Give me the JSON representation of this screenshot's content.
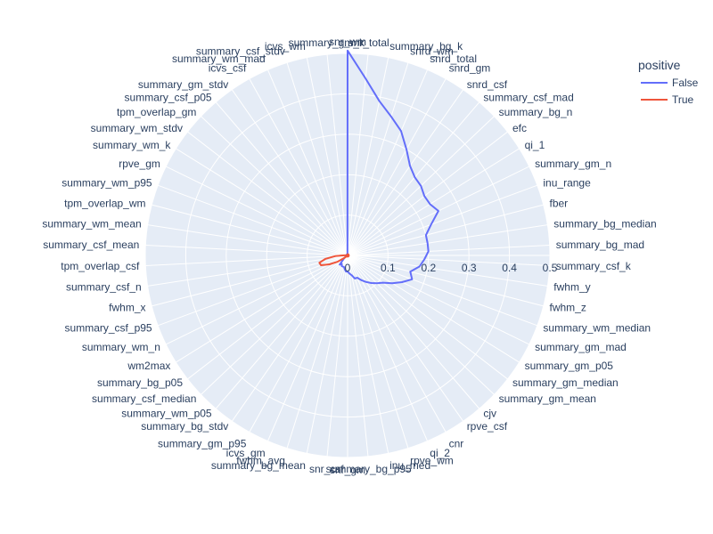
{
  "chart_data": {
    "type": "polar-line",
    "radial_range": [
      0,
      0.5
    ],
    "radial_ticks": [
      "0",
      "0.1",
      "0.2",
      "0.3",
      "0.4",
      "0.5"
    ],
    "angular_direction": "clockwise",
    "rotation_start": "top",
    "grid": true,
    "polar_background": "#e5ecf6",
    "legend": {
      "title": "positive",
      "placement": "top-right"
    },
    "categories": [
      "snr_wm",
      "snr_total",
      "summary_bg_k",
      "snrd_wm",
      "snrd_total",
      "snrd_gm",
      "snrd_csf",
      "summary_csf_mad",
      "summary_bg_n",
      "efc",
      "qi_1",
      "summary_gm_n",
      "inu_range",
      "fber",
      "summary_bg_median",
      "summary_bg_mad",
      "summary_csf_k",
      "fwhm_y",
      "fwhm_z",
      "summary_wm_median",
      "summary_gm_mad",
      "summary_gm_p05",
      "summary_gm_median",
      "summary_gm_mean",
      "cjv",
      "rpve_csf",
      "cnr",
      "qi_2",
      "rpve_wm",
      "inu_med",
      "summary_bg_p95",
      "snr_gm",
      "snr_csf",
      "summary_bg_mean",
      "fwhm_avg",
      "icvs_gm",
      "summary_gm_p95",
      "summary_bg_stdv",
      "summary_wm_p05",
      "summary_csf_median",
      "summary_bg_p05",
      "wm2max",
      "summary_wm_n",
      "summary_csf_p95",
      "fwhm_x",
      "summary_csf_n",
      "tpm_overlap_csf",
      "summary_csf_mean",
      "summary_wm_mean",
      "tpm_overlap_wm",
      "summary_wm_p95",
      "rpve_gm",
      "summary_wm_k",
      "summary_wm_stdv",
      "tpm_overlap_gm",
      "summary_csf_p05",
      "summary_gm_stdv",
      "icvs_csf",
      "summary_wm_mad",
      "summary_csf_stdv",
      "icvs_wm",
      "summary_gm_k"
    ],
    "series": [
      {
        "name": "False",
        "color": "#636efa",
        "values": [
          0.507,
          0.44,
          0.39,
          0.36,
          0.335,
          0.3,
          0.27,
          0.255,
          0.25,
          0.24,
          0.24,
          0.25,
          0.22,
          0.2,
          0.2,
          0.2,
          0.19,
          0.18,
          0.16,
          0.17,
          0.15,
          0.13,
          0.11,
          0.1,
          0.09,
          0.08,
          0.07,
          0.06,
          0.06,
          0.05,
          0.045,
          0.04,
          0.04,
          0.035,
          0.03,
          0.03,
          0.03,
          0.025,
          0.03,
          0.015,
          0.01,
          0.005,
          0.003,
          0.003,
          0.003,
          0.003,
          0.003,
          0.003,
          0.003,
          0.003,
          0.003,
          0.003,
          0.003,
          0.003,
          0.003,
          0.003,
          0.003,
          0.003,
          0.003,
          0.003,
          0.003,
          0.003
        ]
      },
      {
        "name": "True",
        "color": "#ef553b",
        "values": [
          0.003,
          0.003,
          0.003,
          0.003,
          0.003,
          0.003,
          0.003,
          0.003,
          0.003,
          0.003,
          0.003,
          0.003,
          0.003,
          0.003,
          0.003,
          0.003,
          0.003,
          0.003,
          0.003,
          0.003,
          0.003,
          0.003,
          0.003,
          0.003,
          0.003,
          0.003,
          0.003,
          0.003,
          0.003,
          0.003,
          0.003,
          0.003,
          0.003,
          0.003,
          0.003,
          0.003,
          0.003,
          0.003,
          0.003,
          0.003,
          0.01,
          0.03,
          0.05,
          0.07,
          0.072,
          0.055,
          0.03,
          0.008,
          0.002,
          0.001,
          0.001,
          0.001,
          0.001,
          0.001,
          0.001,
          0.001,
          0.001,
          0.001,
          0.001,
          0.001,
          0.001,
          0.001
        ]
      }
    ]
  }
}
